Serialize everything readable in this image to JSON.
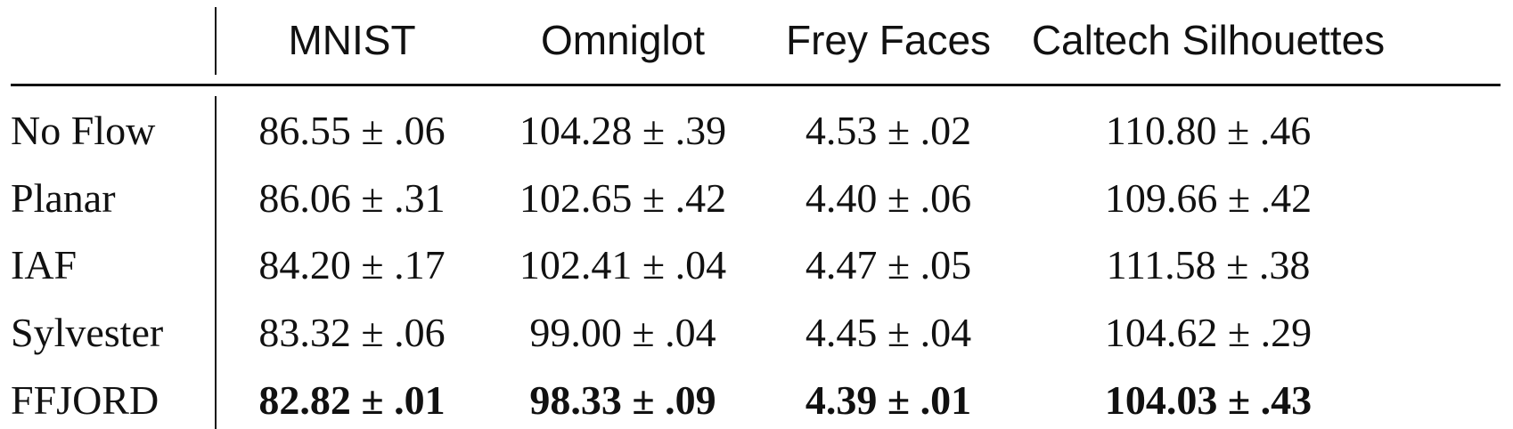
{
  "table": {
    "columns": [
      "MNIST",
      "Omniglot",
      "Frey Faces",
      "Caltech Silhouettes"
    ],
    "rows": [
      {
        "label": "No Flow",
        "bold": false,
        "values": [
          "86.55 ± .06",
          "104.28 ± .39",
          "4.53 ± .02",
          "110.80 ± .46"
        ]
      },
      {
        "label": "Planar",
        "bold": false,
        "values": [
          "86.06 ± .31",
          "102.65 ± .42",
          "4.40 ± .06",
          "109.66 ± .42"
        ]
      },
      {
        "label": "IAF",
        "bold": false,
        "values": [
          "84.20 ± .17",
          "102.41 ± .04",
          "4.47 ± .05",
          "111.58 ± .38"
        ]
      },
      {
        "label": "Sylvester",
        "bold": false,
        "values": [
          "83.32 ± .06",
          "99.00 ± .04",
          "4.45 ± .04",
          "104.62 ± .29"
        ]
      },
      {
        "label": "FFJORD",
        "bold": true,
        "values": [
          "82.82 ± .01",
          "98.33 ± .09",
          "4.39 ± .01",
          "104.03 ± .43"
        ]
      }
    ]
  }
}
